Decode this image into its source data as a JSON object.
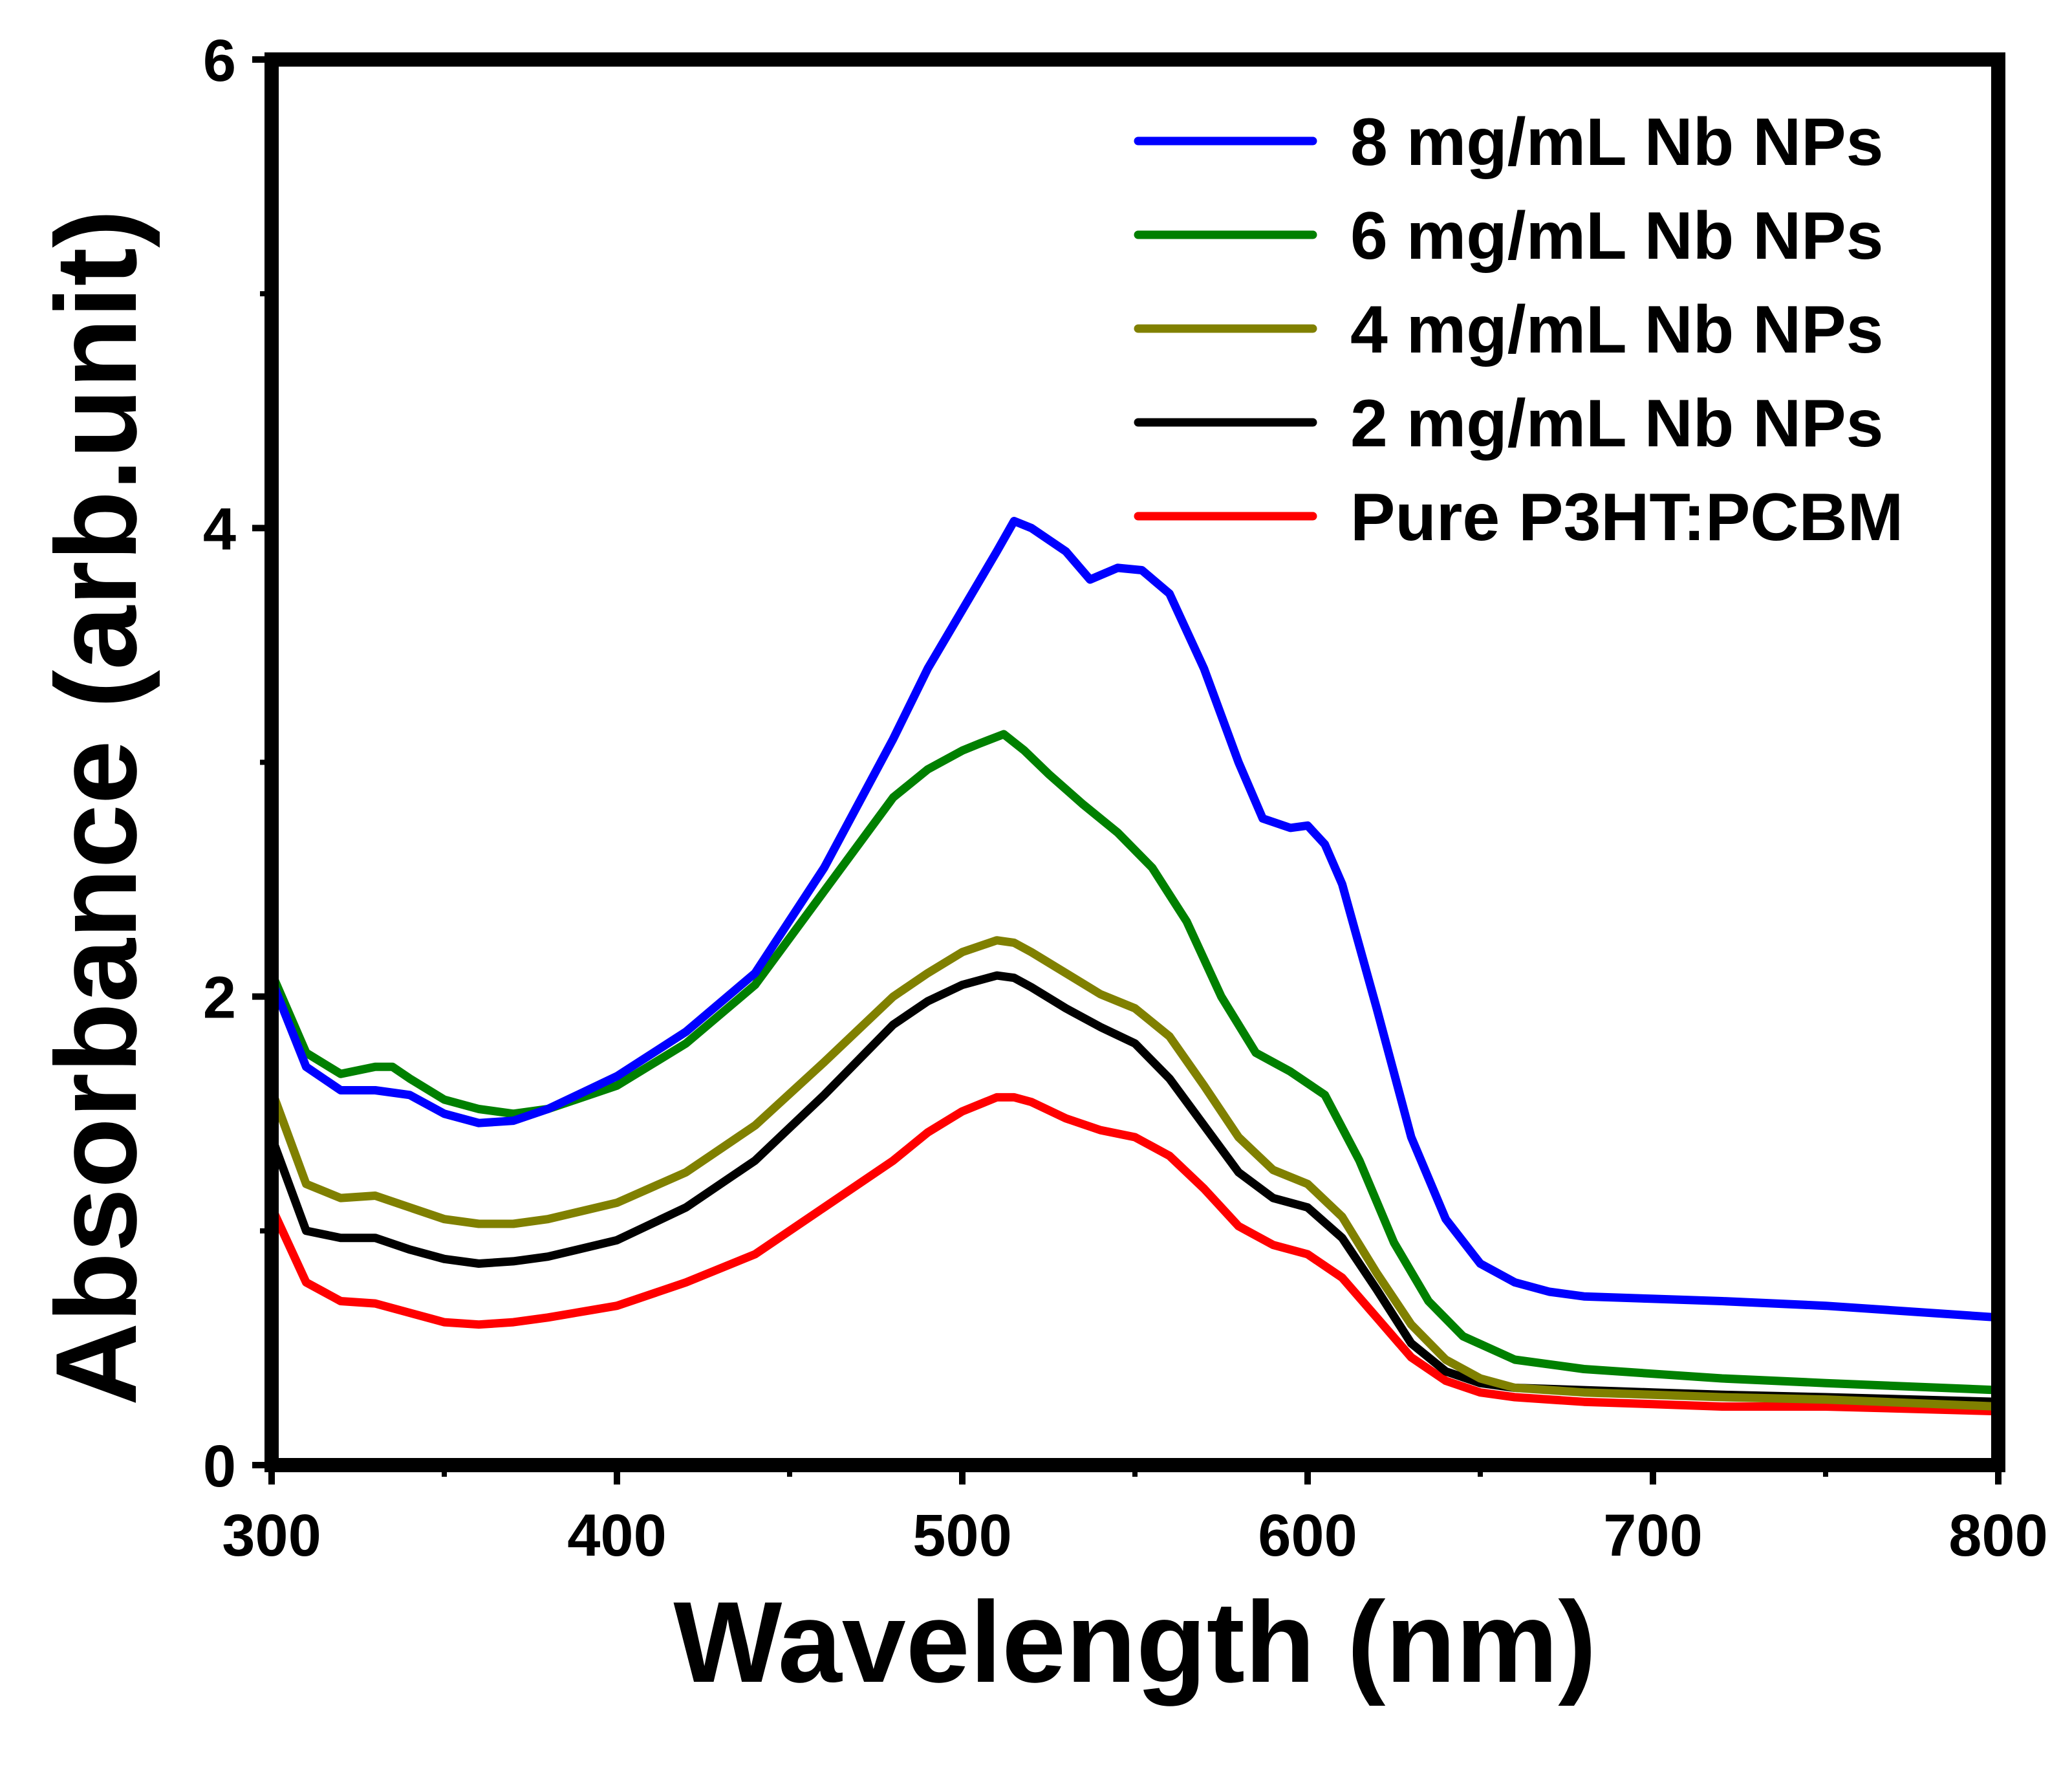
{
  "chart_data": {
    "type": "line",
    "title": "",
    "xlabel": "Wavelength (nm)",
    "ylabel": "Absorbance (arb.unit)",
    "xlim": [
      300,
      800
    ],
    "ylim": [
      0,
      6
    ],
    "xticks": [
      300,
      400,
      500,
      600,
      700,
      800
    ],
    "xtick_labels": [
      "300",
      "400",
      "500",
      "600",
      "700",
      "800"
    ],
    "yticks": [
      0,
      2,
      4,
      6
    ],
    "ytick_labels": [
      "0",
      "2",
      "4",
      "6"
    ],
    "grid": false,
    "legend_position": "top-right",
    "series": [
      {
        "name": "8 mg/mL Nb NPs",
        "color": "#0000ff",
        "x": [
          300,
          310,
          320,
          330,
          340,
          350,
          360,
          370,
          380,
          400,
          420,
          440,
          460,
          480,
          490,
          500,
          510,
          515,
          520,
          530,
          537,
          545,
          552,
          560,
          570,
          580,
          587,
          595,
          600,
          605,
          610,
          620,
          630,
          640,
          650,
          660,
          670,
          680,
          700,
          720,
          750,
          800
        ],
        "y": [
          2.07,
          1.7,
          1.6,
          1.6,
          1.58,
          1.5,
          1.46,
          1.47,
          1.52,
          1.66,
          1.85,
          2.1,
          2.55,
          3.1,
          3.4,
          3.65,
          3.9,
          4.03,
          4.0,
          3.9,
          3.78,
          3.83,
          3.82,
          3.72,
          3.4,
          3.0,
          2.76,
          2.72,
          2.73,
          2.65,
          2.48,
          1.95,
          1.4,
          1.05,
          0.86,
          0.78,
          0.74,
          0.72,
          0.71,
          0.7,
          0.68,
          0.63
        ]
      },
      {
        "name": "6 mg/mL Nb NPs",
        "color": "#008000",
        "x": [
          300,
          310,
          320,
          330,
          335,
          340,
          350,
          360,
          370,
          380,
          400,
          420,
          440,
          460,
          480,
          490,
          500,
          505,
          512,
          518,
          525,
          535,
          545,
          555,
          565,
          575,
          585,
          595,
          605,
          615,
          625,
          635,
          645,
          660,
          680,
          700,
          720,
          750,
          800
        ],
        "y": [
          2.1,
          1.76,
          1.67,
          1.7,
          1.7,
          1.65,
          1.56,
          1.52,
          1.5,
          1.52,
          1.62,
          1.8,
          2.05,
          2.45,
          2.85,
          2.97,
          3.05,
          3.08,
          3.12,
          3.05,
          2.95,
          2.82,
          2.7,
          2.55,
          2.32,
          2.0,
          1.76,
          1.68,
          1.58,
          1.3,
          0.95,
          0.7,
          0.55,
          0.45,
          0.41,
          0.39,
          0.37,
          0.35,
          0.32
        ]
      },
      {
        "name": "4 mg/mL Nb NPs",
        "color": "#808000",
        "x": [
          300,
          310,
          320,
          330,
          340,
          350,
          360,
          370,
          380,
          400,
          420,
          440,
          460,
          480,
          490,
          500,
          510,
          515,
          520,
          530,
          540,
          550,
          560,
          570,
          580,
          590,
          600,
          610,
          620,
          630,
          640,
          650,
          660,
          680,
          700,
          720,
          750,
          800
        ],
        "y": [
          1.6,
          1.2,
          1.14,
          1.15,
          1.1,
          1.05,
          1.03,
          1.03,
          1.05,
          1.12,
          1.25,
          1.45,
          1.72,
          2.0,
          2.1,
          2.19,
          2.24,
          2.23,
          2.19,
          2.1,
          2.01,
          1.95,
          1.83,
          1.62,
          1.4,
          1.26,
          1.2,
          1.06,
          0.82,
          0.6,
          0.45,
          0.37,
          0.33,
          0.31,
          0.3,
          0.29,
          0.28,
          0.25
        ]
      },
      {
        "name": "2 mg/mL Nb NPs",
        "color": "#000000",
        "x": [
          300,
          310,
          320,
          330,
          340,
          350,
          360,
          370,
          380,
          400,
          420,
          440,
          460,
          480,
          490,
          500,
          510,
          515,
          520,
          530,
          540,
          550,
          560,
          570,
          580,
          590,
          600,
          610,
          620,
          630,
          640,
          650,
          660,
          680,
          700,
          720,
          750,
          800
        ],
        "y": [
          1.4,
          1.0,
          0.97,
          0.97,
          0.92,
          0.88,
          0.86,
          0.87,
          0.89,
          0.96,
          1.1,
          1.3,
          1.58,
          1.88,
          1.98,
          2.05,
          2.09,
          2.08,
          2.04,
          1.95,
          1.87,
          1.8,
          1.65,
          1.45,
          1.25,
          1.14,
          1.1,
          0.97,
          0.75,
          0.52,
          0.4,
          0.35,
          0.33,
          0.32,
          0.31,
          0.3,
          0.29,
          0.27
        ]
      },
      {
        "name": "Pure P3HT:PCBM",
        "color": "#ff0000",
        "x": [
          300,
          310,
          320,
          330,
          340,
          350,
          360,
          370,
          380,
          400,
          420,
          440,
          460,
          480,
          490,
          500,
          510,
          515,
          520,
          530,
          540,
          550,
          560,
          570,
          580,
          590,
          600,
          610,
          620,
          630,
          640,
          650,
          660,
          680,
          700,
          720,
          750,
          800
        ],
        "y": [
          1.1,
          0.78,
          0.7,
          0.69,
          0.65,
          0.61,
          0.6,
          0.61,
          0.63,
          0.68,
          0.78,
          0.9,
          1.1,
          1.3,
          1.42,
          1.51,
          1.57,
          1.57,
          1.55,
          1.48,
          1.43,
          1.4,
          1.32,
          1.18,
          1.02,
          0.94,
          0.9,
          0.8,
          0.63,
          0.46,
          0.36,
          0.31,
          0.29,
          0.27,
          0.26,
          0.25,
          0.25,
          0.23
        ]
      }
    ]
  }
}
